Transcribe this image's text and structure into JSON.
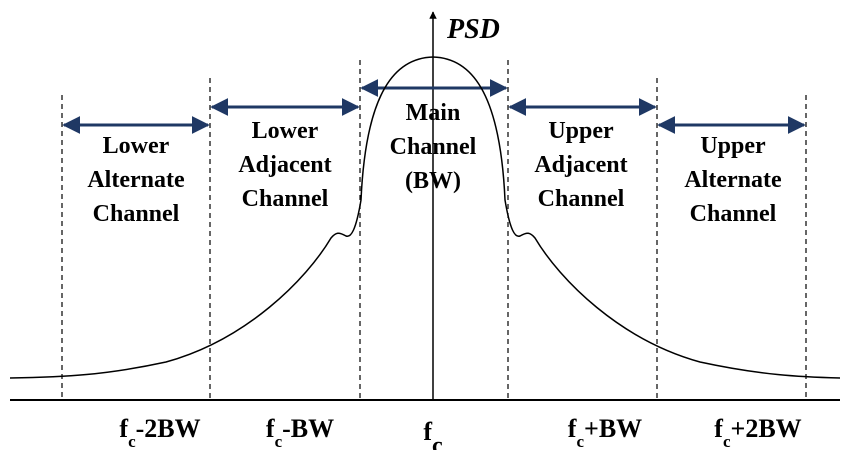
{
  "axis_label": "PSD",
  "channels": [
    {
      "lines": [
        "Lower",
        "Alternate",
        "Channel"
      ]
    },
    {
      "lines": [
        "Lower",
        "Adjacent",
        "Channel"
      ]
    },
    {
      "lines": [
        "Main",
        "Channel",
        "(BW)"
      ]
    },
    {
      "lines": [
        "Upper",
        "Adjacent",
        "Channel"
      ]
    },
    {
      "lines": [
        "Upper",
        "Alternate",
        "Channel"
      ]
    }
  ],
  "frequency_labels": [
    {
      "base": "f",
      "sub": "c",
      "rest": "-2BW"
    },
    {
      "base": "f",
      "sub": "c",
      "rest": "-BW"
    },
    {
      "base": "f",
      "sub": "c"
    },
    {
      "base": "f",
      "sub": "c",
      "rest": "+BW"
    },
    {
      "base": "f",
      "sub": "c",
      "rest": "+2BW"
    }
  ]
}
